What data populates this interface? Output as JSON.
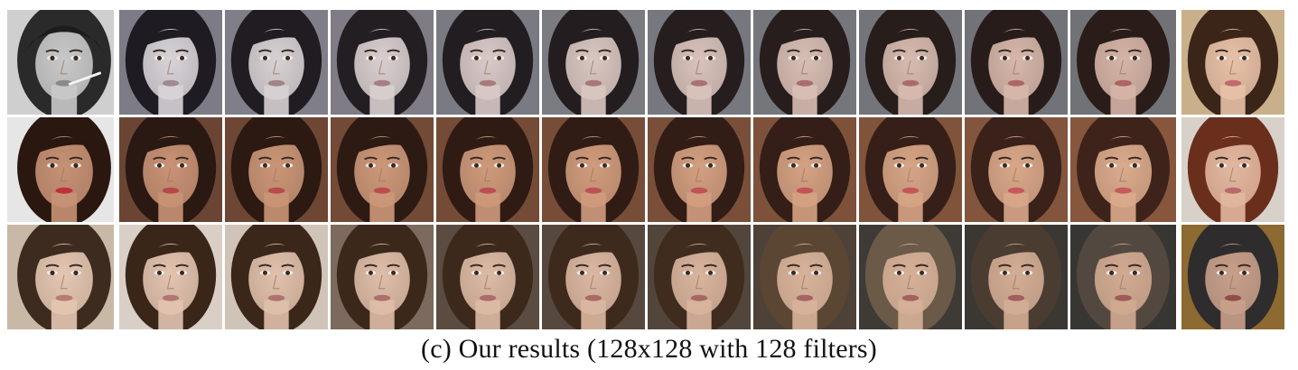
{
  "caption": "(c) Our results (128x128 with 128 filters)",
  "rows": [
    {
      "label": "row-1",
      "cells": [
        {
          "kind": "source",
          "bg": "#cfcfcf",
          "hair": "#2a2a2a",
          "skin": "#c9c9c9",
          "lip": "#8a8a8a",
          "hat": true,
          "cig": true
        },
        {
          "kind": "interp",
          "bg": "#7d7b86",
          "hair": "#1e1b22",
          "skin": "#d8d4d8",
          "lip": "#9f8a90"
        },
        {
          "kind": "interp",
          "bg": "#807e88",
          "hair": "#201c22",
          "skin": "#d8d2d4",
          "lip": "#a08488"
        },
        {
          "kind": "interp",
          "bg": "#7f7c85",
          "hair": "#231e22",
          "skin": "#d9cfcf",
          "lip": "#a47f82"
        },
        {
          "kind": "interp",
          "bg": "#7a7a83",
          "hair": "#221d20",
          "skin": "#d9cac8",
          "lip": "#a67b7c"
        },
        {
          "kind": "interp",
          "bg": "#7b7b82",
          "hair": "#241d1f",
          "skin": "#dac7c2",
          "lip": "#a87676"
        },
        {
          "kind": "interp",
          "bg": "#77787f",
          "hair": "#251d1e",
          "skin": "#dac3bc",
          "lip": "#a97171"
        },
        {
          "kind": "interp",
          "bg": "#75767c",
          "hair": "#261d1c",
          "skin": "#d9bfb5",
          "lip": "#aa6d6c"
        },
        {
          "kind": "interp",
          "bg": "#74757a",
          "hair": "#271d1b",
          "skin": "#d8bbb0",
          "lip": "#ab6a68"
        },
        {
          "kind": "interp",
          "bg": "#727378",
          "hair": "#281c1a",
          "skin": "#d7b8ab",
          "lip": "#ac6764"
        },
        {
          "kind": "interp",
          "bg": "#717276",
          "hair": "#291c19",
          "skin": "#d6b5a7",
          "lip": "#ad6461"
        },
        {
          "kind": "target",
          "bg": "#c9b08a",
          "hair": "#3b2418",
          "skin": "#e8c2a8",
          "lip": "#c06a6e"
        }
      ]
    },
    {
      "label": "row-2",
      "cells": [
        {
          "kind": "source",
          "bg": "#e6e6e6",
          "hair": "#2a1710",
          "skin": "#c79275",
          "lip": "#c0303a"
        },
        {
          "kind": "interp",
          "bg": "#6b4534",
          "hair": "#2a1812",
          "skin": "#c99375",
          "lip": "#b6484c"
        },
        {
          "kind": "interp",
          "bg": "#6e4634",
          "hair": "#2b1912",
          "skin": "#cb9677",
          "lip": "#b84a4e"
        },
        {
          "kind": "interp",
          "bg": "#724a36",
          "hair": "#2d1a13",
          "skin": "#cd9879",
          "lip": "#ba4c50"
        },
        {
          "kind": "interp",
          "bg": "#744b37",
          "hair": "#2f1b14",
          "skin": "#cf9a7b",
          "lip": "#bc4e52"
        },
        {
          "kind": "interp",
          "bg": "#774d38",
          "hair": "#301c15",
          "skin": "#d19c7d",
          "lip": "#be5054"
        },
        {
          "kind": "interp",
          "bg": "#7a4f39",
          "hair": "#321d16",
          "skin": "#d39f80",
          "lip": "#c05256"
        },
        {
          "kind": "interp",
          "bg": "#7d513a",
          "hair": "#341e17",
          "skin": "#d5a283",
          "lip": "#c25458"
        },
        {
          "kind": "interp",
          "bg": "#80533b",
          "hair": "#361f18",
          "skin": "#d7a586",
          "lip": "#c4565a"
        },
        {
          "kind": "interp",
          "bg": "#83553c",
          "hair": "#3a2119",
          "skin": "#d9a889",
          "lip": "#c6585c"
        },
        {
          "kind": "interp",
          "bg": "#86573d",
          "hair": "#3e231a",
          "skin": "#dbab8c",
          "lip": "#c85a5e"
        },
        {
          "kind": "target",
          "bg": "#d7d1ca",
          "hair": "#6a2f1c",
          "skin": "#e2b7a0",
          "lip": "#b86a68"
        }
      ]
    },
    {
      "label": "row-3",
      "cells": [
        {
          "kind": "source",
          "bg": "#c8b8a6",
          "hair": "#3d2b1f",
          "skin": "#e4c7b2",
          "lip": "#b87a78"
        },
        {
          "kind": "interp",
          "bg": "#d9cfc6",
          "hair": "#3a2619",
          "skin": "#e2c4b0",
          "lip": "#b07674"
        },
        {
          "kind": "interp",
          "bg": "#d0c4b8",
          "hair": "#3b2719",
          "skin": "#e0c1ac",
          "lip": "#ae7371"
        },
        {
          "kind": "interp",
          "bg": "#7b6a5d",
          "hair": "#3c281a",
          "skin": "#dfbea9",
          "lip": "#ac706e"
        },
        {
          "kind": "interp",
          "bg": "#5b4c42",
          "hair": "#3d291b",
          "skin": "#ddbba5",
          "lip": "#aa6d6b"
        },
        {
          "kind": "interp",
          "bg": "#56483e",
          "hair": "#3e2a1c",
          "skin": "#dbb8a2",
          "lip": "#a86a68"
        },
        {
          "kind": "interp",
          "bg": "#52453c",
          "hair": "#402c1e",
          "skin": "#d9b59e",
          "lip": "#a66765"
        },
        {
          "kind": "interp",
          "bg": "#4e4238",
          "hair": "#5a4632",
          "skin": "#d8b39b",
          "lip": "#a46462"
        },
        {
          "kind": "interp",
          "bg": "#3e3a36",
          "hair": "#6b5a48",
          "skin": "#d6b098",
          "lip": "#a2615f"
        },
        {
          "kind": "interp",
          "bg": "#3b3834",
          "hair": "#4a3c30",
          "skin": "#d4ad95",
          "lip": "#a05e5c"
        },
        {
          "kind": "interp",
          "bg": "#383633",
          "hair": "#52483f",
          "skin": "#d2aa92",
          "lip": "#9e5b59"
        },
        {
          "kind": "target",
          "bg": "#8c6a32",
          "hair": "#2e2c2c",
          "skin": "#c9a08a",
          "lip": "#8e4e4c"
        }
      ]
    }
  ]
}
